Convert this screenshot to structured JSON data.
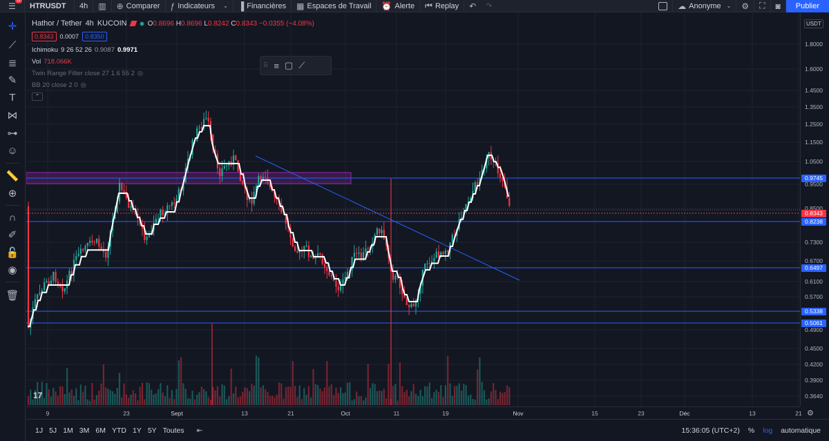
{
  "topbar": {
    "notif_count": "11",
    "symbol": "HTRUSDT",
    "interval": "4h",
    "compare": "Comparer",
    "indicators": "Indicateurs",
    "financials": "Financières",
    "workspaces": "Espaces de Travail",
    "alert": "Alerte",
    "replay": "Replay",
    "user": "Anonyme",
    "publish": "Publier"
  },
  "legend": {
    "title": "Hathor / Tether",
    "interval": "4h",
    "exchange": "KUCOIN",
    "open_key": "O",
    "open": "0.8696",
    "high_key": "H",
    "high": "0.8696",
    "low_key": "L",
    "low": "0.8242",
    "close_key": "C",
    "close": "0.8343",
    "change": "−0.0355 (−4.08%)",
    "bid": "0.8343",
    "spread": "0.0007",
    "ask": "0.8350",
    "ichimoku_name": "Ichimoku",
    "ichimoku_params": "9 26 52 26",
    "ichimoku_v1": "0.9087",
    "ichimoku_v2": "0.9971",
    "vol_name": "Vol",
    "vol_value": "718.066K",
    "trf_name": "Twin Range Filter close 27 1.6 55 2",
    "bb_name": "BB 20 close 2 0"
  },
  "price_scale": {
    "currency": "USDT",
    "ticks": [
      "1.8000",
      "1.6000",
      "1.4500",
      "1.3500",
      "1.2500",
      "1.1500",
      "1.0500",
      "0.9500",
      "0.8500",
      "0.7300",
      "0.6700",
      "0.6100",
      "0.5700",
      "0.4900",
      "0.4500",
      "0.4200",
      "0.3900",
      "0.3640"
    ],
    "tags": [
      {
        "value": "0.9745",
        "color": "#2962ff"
      },
      {
        "value": "0.8343",
        "color": "#f23645"
      },
      {
        "value": "0.8238",
        "color": "#2962ff"
      },
      {
        "value": "0.6497",
        "color": "#2962ff"
      },
      {
        "value": "0.5338",
        "color": "#2962ff"
      },
      {
        "value": "0.5061",
        "color": "#2962ff"
      }
    ]
  },
  "time_axis": {
    "labels": [
      "9",
      "23",
      "Sept",
      "13",
      "21",
      "Oct",
      "11",
      "19",
      "Nov",
      "15",
      "23",
      "Déc",
      "13",
      "21"
    ],
    "bold": [
      "Sept",
      "Oct",
      "Nov",
      "Déc"
    ]
  },
  "bottombar": {
    "ranges": [
      "1J",
      "5J",
      "1M",
      "3M",
      "6M",
      "YTD",
      "1Y",
      "5Y",
      "Toutes"
    ],
    "clock": "15:36:05 (UTC+2)",
    "percent": "%",
    "log": "log",
    "auto": "automatique"
  },
  "colors": {
    "up": "#26a69a",
    "down": "#f23645",
    "accent": "#2962ff",
    "bg": "#131722",
    "zone": "#9c27b0"
  },
  "icons": [
    "menu-icon",
    "candles-icon",
    "compare-icon",
    "indicators-icon",
    "financials-icon",
    "workspaces-icon",
    "alert-icon",
    "replay-icon",
    "undo-icon",
    "redo-icon",
    "cloud-icon",
    "settings-icon",
    "fullscreen-icon",
    "camera-icon",
    "crosshair-icon",
    "trendline-icon",
    "fib-icon",
    "brush-icon",
    "text-icon",
    "pattern-icon",
    "forecast-icon",
    "emoji-icon",
    "ruler-icon",
    "zoom-icon",
    "magnet-icon",
    "lock-draw-icon",
    "lock-icon",
    "eye-icon",
    "trash-icon"
  ]
}
